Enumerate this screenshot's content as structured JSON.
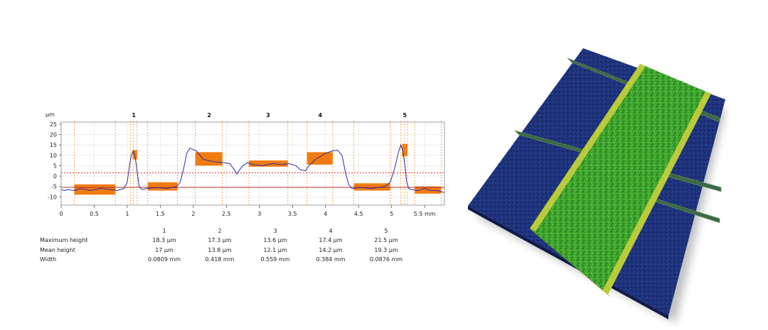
{
  "chart_data": {
    "type": "line",
    "unit_label": "µm",
    "x_unit": "mm",
    "xlim": [
      0,
      5.8
    ],
    "ylim": [
      -14,
      26
    ],
    "y_ticks": [
      25,
      20,
      15,
      10,
      5,
      0,
      -5,
      -10
    ],
    "x_ticks": [
      {
        "v": 0,
        "label": "0"
      },
      {
        "v": 0.5,
        "label": "0.5"
      },
      {
        "v": 1,
        "label": "1"
      },
      {
        "v": 1.5,
        "label": "1.5"
      },
      {
        "v": 2,
        "label": "2"
      },
      {
        "v": 2.5,
        "label": "2.5"
      },
      {
        "v": 3,
        "label": "3"
      },
      {
        "v": 3.5,
        "label": "3.5"
      },
      {
        "v": 4,
        "label": "4"
      },
      {
        "v": 4.5,
        "label": "4.5"
      },
      {
        "v": 5,
        "label": "5"
      },
      {
        "v": 5.5,
        "label": "5.5 mm"
      }
    ],
    "profile": {
      "x": [
        0,
        0.05,
        0.1,
        0.2,
        0.3,
        0.45,
        0.6,
        0.75,
        0.85,
        0.95,
        1.0,
        1.03,
        1.06,
        1.09,
        1.12,
        1.15,
        1.18,
        1.22,
        1.3,
        1.45,
        1.6,
        1.75,
        1.8,
        1.85,
        1.9,
        1.95,
        2.05,
        2.15,
        2.3,
        2.44,
        2.55,
        2.62,
        2.66,
        2.7,
        2.75,
        2.82,
        2.9,
        3.05,
        3.2,
        3.35,
        3.45,
        3.55,
        3.62,
        3.7,
        3.75,
        3.85,
        4.0,
        4.1,
        4.18,
        4.25,
        4.3,
        4.35,
        4.4,
        4.5,
        4.7,
        4.9,
        4.98,
        5.05,
        5.1,
        5.14,
        5.17,
        5.2,
        5.23,
        5.26,
        5.3,
        5.4,
        5.5,
        5.6,
        5.7,
        5.8
      ],
      "y": [
        -6.5,
        -7,
        -6.5,
        -7,
        -6,
        -7,
        -6,
        -6.5,
        -7,
        -6,
        -3,
        4,
        10,
        12,
        9,
        2,
        -5,
        -6.5,
        -6,
        -5.5,
        -6,
        -5,
        -3,
        3,
        11,
        13.5,
        12,
        8,
        7,
        6.5,
        6,
        3,
        1,
        3,
        5,
        6.5,
        5.5,
        5,
        6,
        5.5,
        6,
        5,
        3,
        2.5,
        5,
        8,
        11,
        12,
        12.5,
        10,
        2,
        -4,
        -6,
        -5.5,
        -6,
        -5,
        -3,
        4,
        11,
        15,
        12,
        6,
        -3,
        -6,
        -6.5,
        -7,
        -6,
        -7,
        -7,
        -8
      ]
    },
    "mean_line": -5.5,
    "upper_dotted": 1.5,
    "zones": [
      {
        "x": 0.2,
        "x2": 0.82,
        "y1": -9,
        "y2": -4
      },
      {
        "x": 1.08,
        "x2": 1.15,
        "y1": 8,
        "y2": 12.5
      },
      {
        "x": 1.31,
        "x2": 1.76,
        "y1": -7,
        "y2": -3
      },
      {
        "x": 2.03,
        "x2": 2.44,
        "y1": 5,
        "y2": 11.5
      },
      {
        "x": 2.84,
        "x2": 3.43,
        "y1": 4.5,
        "y2": 7.5
      },
      {
        "x": 3.72,
        "x2": 4.11,
        "y1": 5.5,
        "y2": 11.5
      },
      {
        "x": 4.43,
        "x2": 4.98,
        "y1": -7,
        "y2": -3.5
      },
      {
        "x": 5.16,
        "x2": 5.24,
        "y1": 9.5,
        "y2": 15.5
      },
      {
        "x": 5.35,
        "x2": 5.75,
        "y1": -8.5,
        "y2": -5
      }
    ],
    "guide_lines": [
      0.2,
      0.82,
      1.05,
      1.09,
      1.15,
      1.31,
      1.76,
      2.03,
      2.44,
      2.84,
      3.43,
      3.72,
      4.11,
      4.43,
      4.98,
      5.14,
      5.2,
      5.24,
      5.35,
      5.75
    ],
    "step_labels": [
      {
        "v": 1.1,
        "label": "1"
      },
      {
        "v": 2.24,
        "label": "2"
      },
      {
        "v": 3.13,
        "label": "3"
      },
      {
        "v": 3.92,
        "label": "4"
      },
      {
        "v": 5.2,
        "label": "5"
      }
    ]
  },
  "table": {
    "steps": [
      "1",
      "2",
      "3",
      "4",
      "5"
    ],
    "rows": [
      {
        "label": "Maximum height",
        "values": [
          "18.3 µm",
          "17.3 µm",
          "13.6 µm",
          "17.4 µm",
          "21.5 µm"
        ]
      },
      {
        "label": "Mean height",
        "values": [
          "17 µm",
          "13.8 µm",
          "12.1 µm",
          "14.2 µm",
          "19.3 µm"
        ]
      },
      {
        "label": "Width",
        "values": [
          "0.0809 mm",
          "0.418 mm",
          "0.559 mm",
          "0.384 mm",
          "0.0876 mm"
        ]
      }
    ]
  },
  "colors": {
    "profile": "#2a2aa8",
    "zone": "#f07c10",
    "guide": "#f2a040",
    "mean_line": "#c03030",
    "dotted": "#e03030",
    "grid": "#e6e6e6",
    "surface_base": "#1d2f7a",
    "surface_track": "#3ea52e",
    "surface_edge": "#c9cf3c"
  }
}
